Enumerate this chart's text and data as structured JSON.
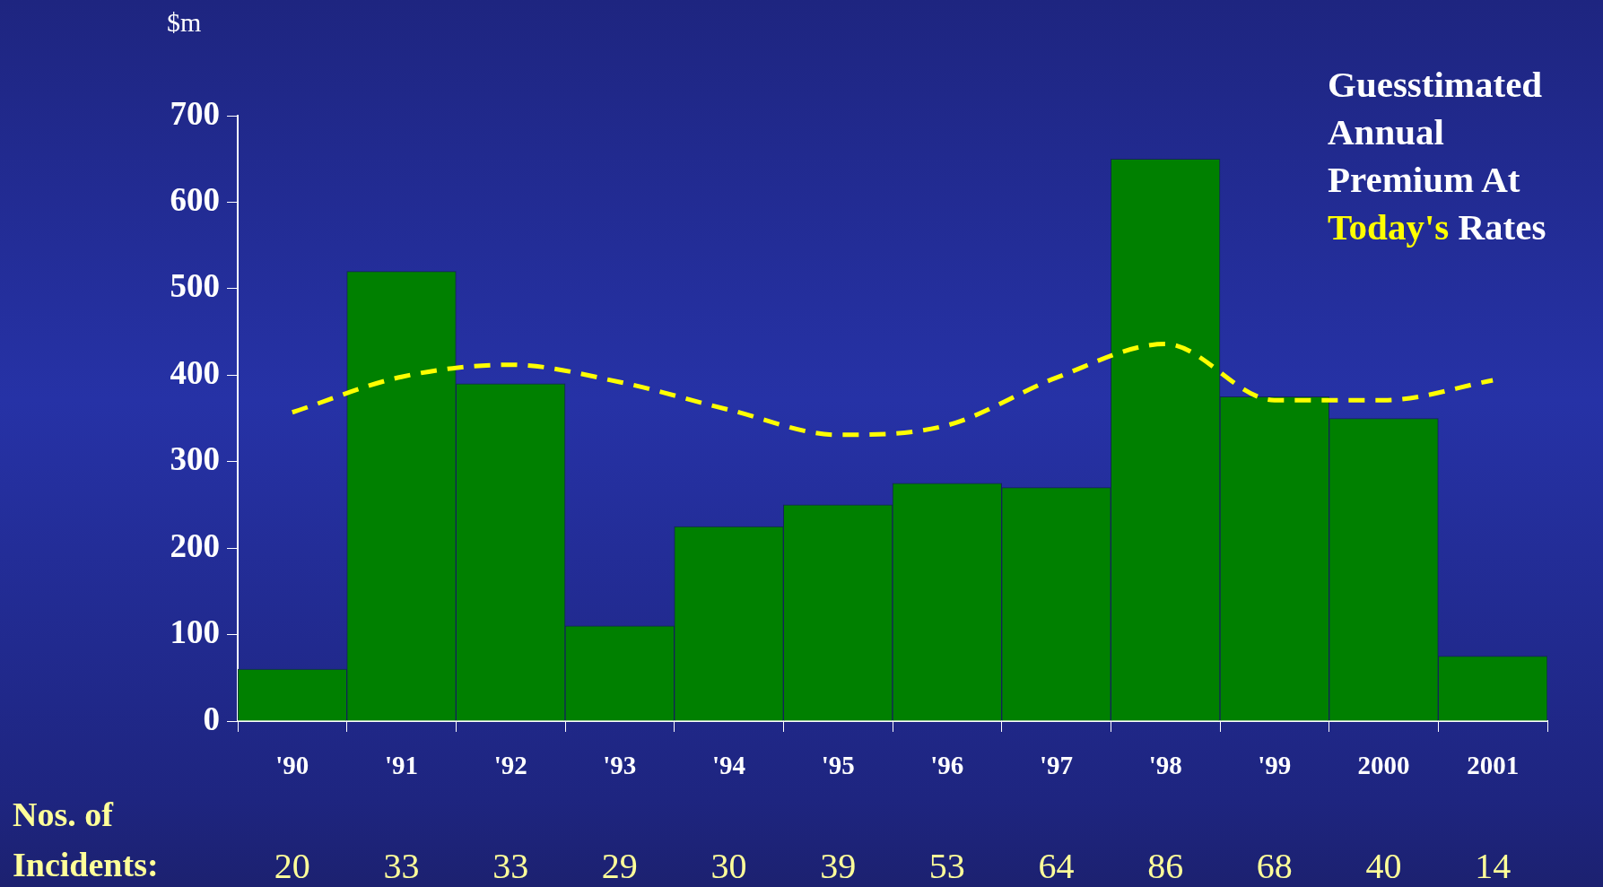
{
  "chart_data": {
    "type": "bar",
    "ylabel": "$m",
    "categories": [
      "'90",
      "'91",
      "'92",
      "'93",
      "'94",
      "'95",
      "'96",
      "'97",
      "'98",
      "'99",
      "2000",
      "2001"
    ],
    "series": [
      {
        "color": "#008000",
        "values": [
          60,
          520,
          390,
          110,
          225,
          250,
          275,
          270,
          650,
          375,
          350,
          75
        ]
      },
      {
        "type": "line",
        "name": "Guesstimated Annual Premium At Today's Rates",
        "color": "#ffff00",
        "line_style": "dashed",
        "values": [
          357,
          398,
          412,
          392,
          360,
          331,
          342,
          397,
          436,
          371,
          371,
          394
        ]
      }
    ],
    "ylim": [
      0,
      700
    ],
    "yticks": [
      0,
      100,
      200,
      300,
      400,
      500,
      600,
      700
    ],
    "legend": "top right",
    "annotations": [
      "Nos. of Incidents:",
      "20",
      "33",
      "33",
      "29",
      "30",
      "39",
      "53",
      "64",
      "86",
      "68",
      "40",
      "14"
    ]
  }
}
